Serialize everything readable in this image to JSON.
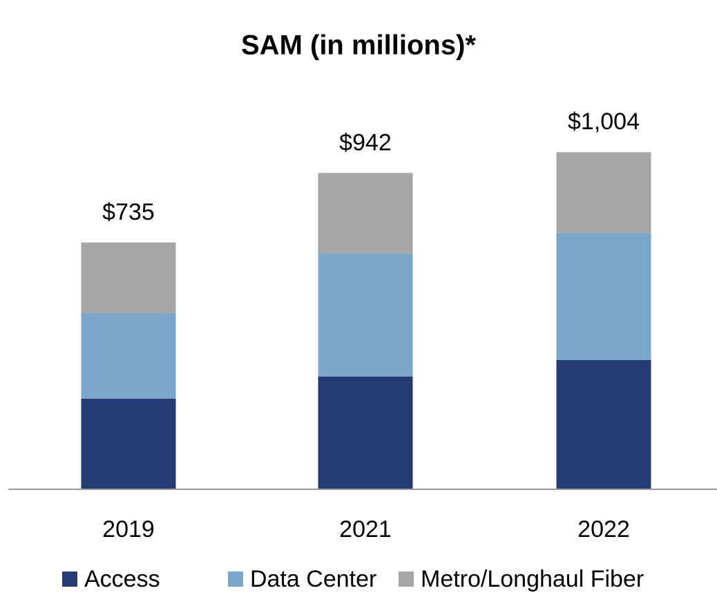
{
  "chart_data": {
    "type": "stacked_bar",
    "title": "SAM (in millions)*",
    "categories": [
      "2019",
      "2021",
      "2022"
    ],
    "series": [
      {
        "name": "Access",
        "color": "#253b73",
        "values": [
          270,
          336,
          385
        ]
      },
      {
        "name": "Data Center",
        "color": "#7aa7c9",
        "values": [
          255,
          366,
          379
        ]
      },
      {
        "name": "Metro/Longhaul Fiber",
        "color": "#a6a6a6",
        "values": [
          210,
          240,
          240
        ]
      }
    ],
    "totals": [
      735,
      942,
      1004
    ],
    "total_labels": [
      "$735",
      "$942",
      "$1,004"
    ],
    "ylim": [
      0,
      1200
    ],
    "legend": "bottom"
  }
}
